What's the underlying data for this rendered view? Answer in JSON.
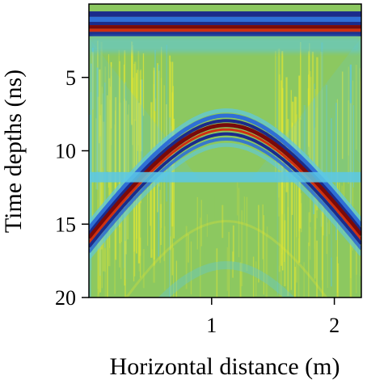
{
  "chart_data": {
    "type": "heatmap",
    "title": "",
    "xlabel": "Horizontal distance (m)",
    "ylabel": "Time depths (ns)",
    "xlim": [
      0,
      2.22
    ],
    "ylim": [
      20,
      0
    ],
    "x_ticks": [
      {
        "value": 1,
        "label": "1"
      },
      {
        "value": 2,
        "label": "2"
      }
    ],
    "y_ticks": [
      {
        "value": 5,
        "label": "5"
      },
      {
        "value": 10,
        "label": "10"
      },
      {
        "value": 15,
        "label": "15"
      },
      {
        "value": 20,
        "label": "20"
      }
    ],
    "grid": false,
    "colormap": [
      "#1a2b8c",
      "#2f6fd6",
      "#5cc8e6",
      "#8cc860",
      "#e8e830",
      "#d03010",
      "#7a0a0a"
    ],
    "background_color": "#8cc860",
    "features": [
      {
        "type": "direct-wave-band",
        "time_ns": [
          0.5,
          2.2
        ]
      },
      {
        "type": "hyperbola",
        "apex_x": 1.12,
        "apex_t": 8.1,
        "edge_t": 15.8
      },
      {
        "type": "horizontal-reflection",
        "time_ns": 11.8
      },
      {
        "type": "faint-hyperbola",
        "apex_x": 1.12,
        "apex_t": 17.8
      }
    ]
  }
}
